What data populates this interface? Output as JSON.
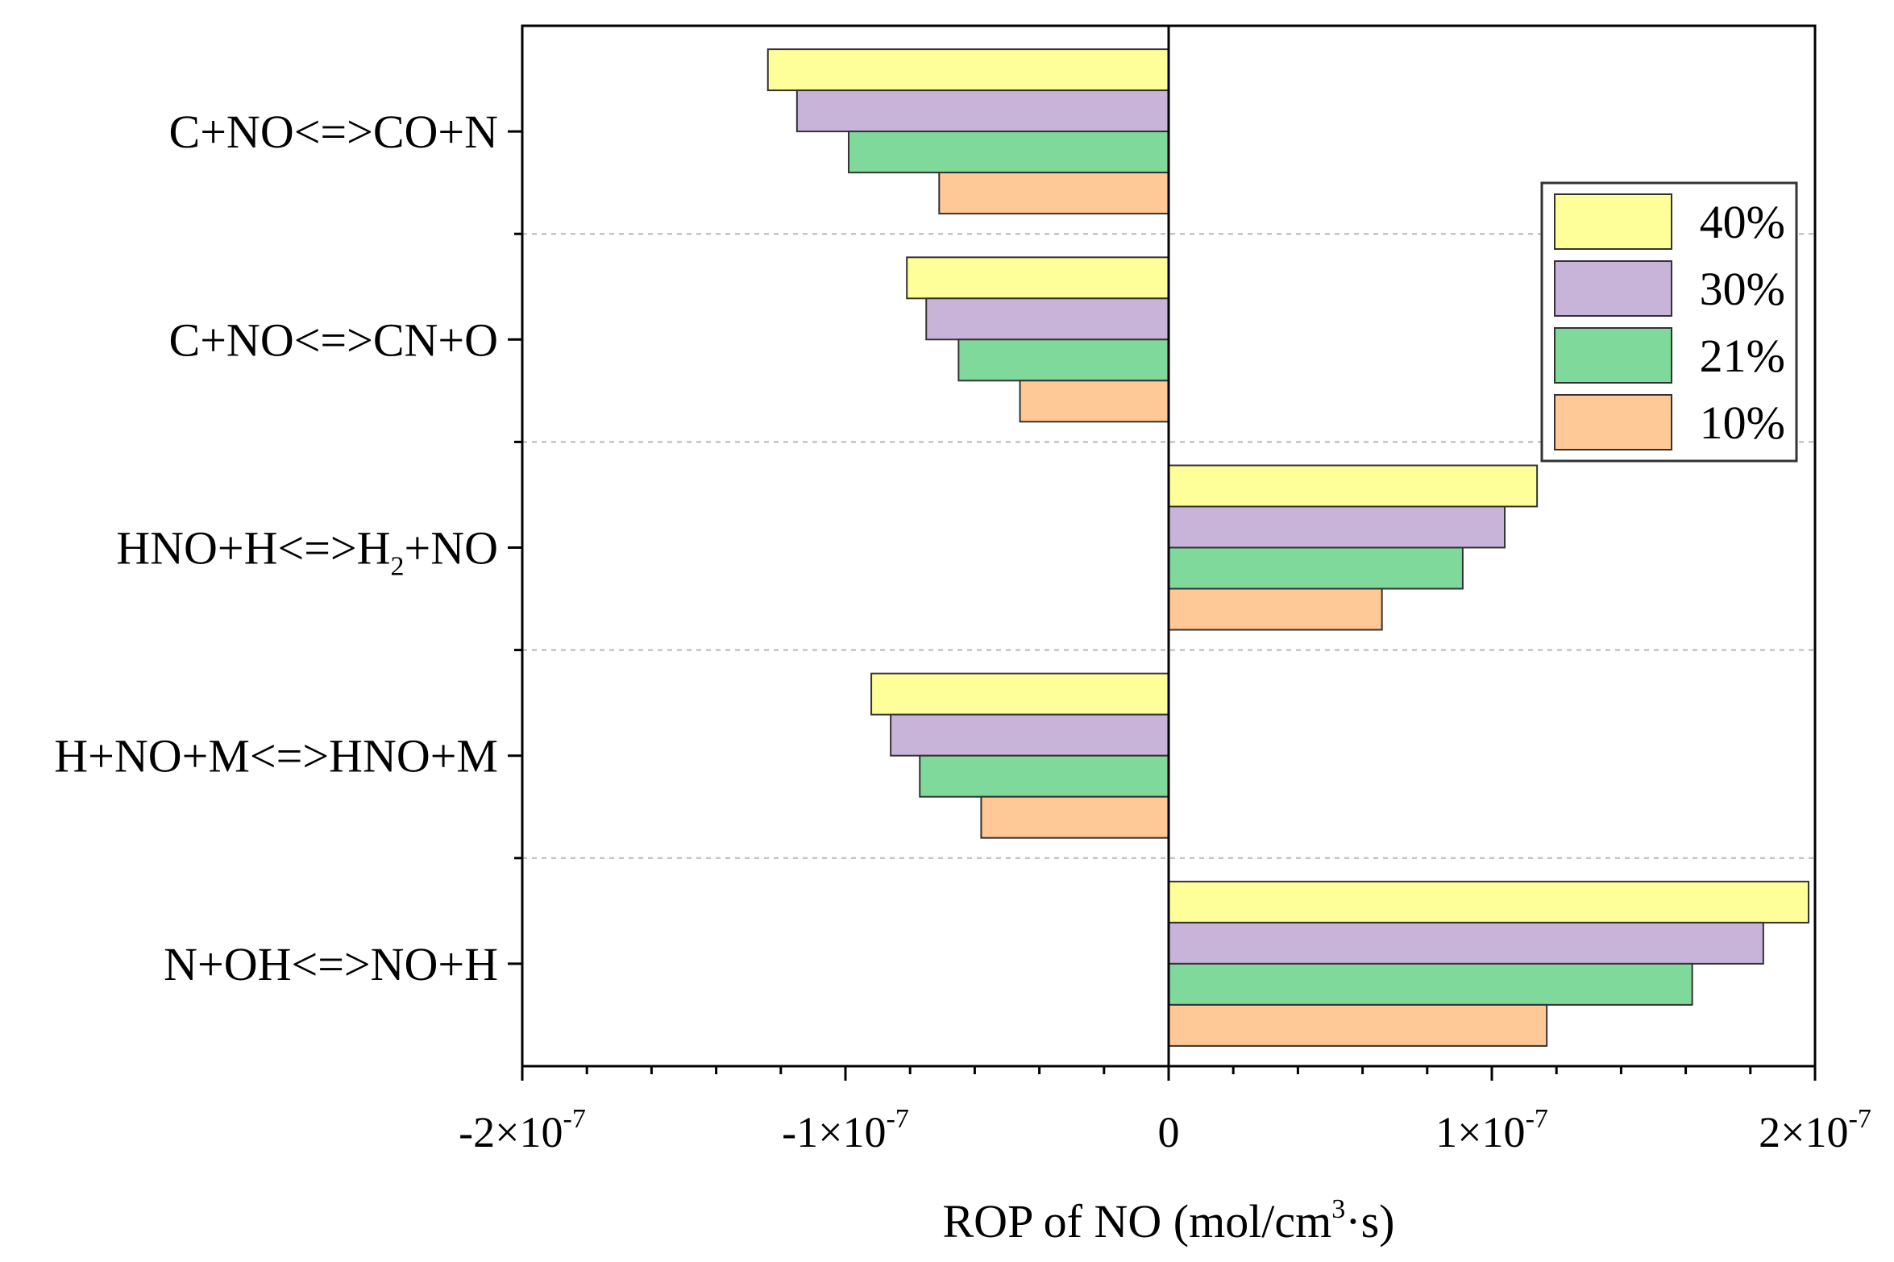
{
  "chart_data": {
    "type": "bar",
    "orientation": "horizontal",
    "title": "",
    "xlabel": {
      "main": "ROP of NO (mol/cm",
      "sup": "3",
      "tail": "·s)"
    },
    "ylabel": "",
    "xlim": [
      -2e-07,
      2e-07
    ],
    "categories": [
      {
        "parts": [
          {
            "t": "C+NO<=>CO+N"
          }
        ]
      },
      {
        "parts": [
          {
            "t": "C+NO<=>CN+O"
          }
        ]
      },
      {
        "parts": [
          {
            "t": "HNO+H<=>H"
          },
          {
            "t": "2",
            "sub": true
          },
          {
            "t": "+NO"
          }
        ]
      },
      {
        "parts": [
          {
            "t": "H+NO+M<=>HNO+M"
          }
        ]
      },
      {
        "parts": [
          {
            "t": "N+OH<=>NO+H"
          }
        ]
      }
    ],
    "series": [
      {
        "name": "40%",
        "color": "#ffff99",
        "values": [
          -1.24e-07,
          -8.1e-08,
          1.14e-07,
          -9.2e-08,
          1.98e-07
        ]
      },
      {
        "name": "30%",
        "color": "#c8b3d9",
        "values": [
          -1.15e-07,
          -7.5e-08,
          1.04e-07,
          -8.6e-08,
          1.84e-07
        ]
      },
      {
        "name": "21%",
        "color": "#7fd99a",
        "values": [
          -9.9e-08,
          -6.5e-08,
          9.1e-08,
          -7.7e-08,
          1.62e-07
        ]
      },
      {
        "name": "10%",
        "color": "#ffc896",
        "values": [
          -7.1e-08,
          -4.6e-08,
          6.6e-08,
          -5.8e-08,
          1.17e-07
        ]
      }
    ],
    "xticks": [
      {
        "value": -2e-07,
        "sign": "-",
        "coef": "2",
        "exp": "-7"
      },
      {
        "value": -1e-07,
        "sign": "-",
        "coef": "1",
        "exp": "-7"
      },
      {
        "value": 0,
        "sign": "",
        "coef": "0",
        "exp": ""
      },
      {
        "value": 1e-07,
        "sign": "",
        "coef": "1",
        "exp": "-7"
      },
      {
        "value": 2e-07,
        "sign": "",
        "coef": "2",
        "exp": "-7"
      }
    ],
    "legend": {
      "placement": "top-right",
      "entries": [
        "40%",
        "30%",
        "21%",
        "10%"
      ]
    },
    "grid": "dashed horizontal separators between categories"
  }
}
